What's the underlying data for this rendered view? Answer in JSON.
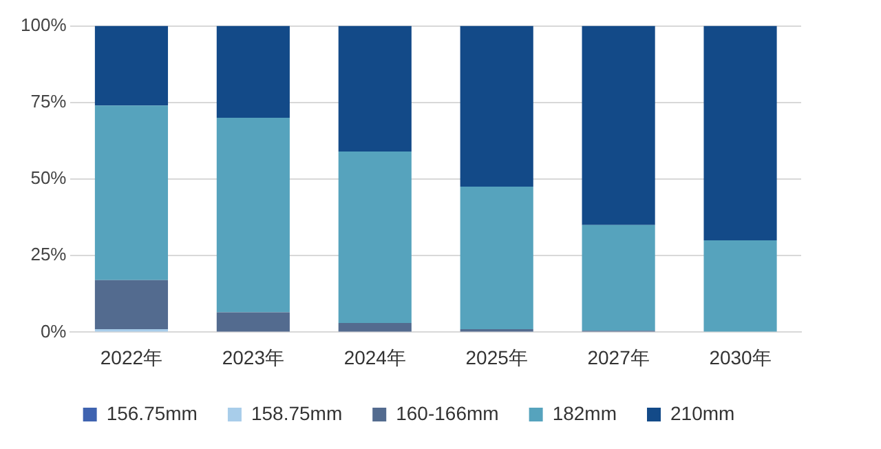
{
  "chart_data": {
    "type": "bar",
    "stacked": true,
    "categories": [
      "2022年",
      "2023年",
      "2024年",
      "2025年",
      "2027年",
      "2030年"
    ],
    "series": [
      {
        "name": "156.75mm",
        "color": "#3f63b0",
        "values": [
          0,
          0,
          0,
          0,
          0,
          0
        ]
      },
      {
        "name": "158.75mm",
        "color": "#a8cdea",
        "values": [
          1,
          0,
          0,
          0,
          0,
          0
        ]
      },
      {
        "name": "160-166mm",
        "color": "#536b8f",
        "values": [
          16,
          6.5,
          3,
          1,
          0.5,
          0
        ]
      },
      {
        "name": "182mm",
        "color": "#56a3bd",
        "values": [
          57,
          63.5,
          56,
          46.5,
          34.5,
          30
        ]
      },
      {
        "name": "210mm",
        "color": "#134a88",
        "values": [
          26,
          30,
          41,
          52.5,
          65,
          70
        ]
      }
    ],
    "ylim": [
      0,
      100
    ],
    "yticks": [
      {
        "value": 0,
        "label": "0%"
      },
      {
        "value": 25,
        "label": "25%"
      },
      {
        "value": 50,
        "label": "50%"
      },
      {
        "value": 75,
        "label": "75%"
      },
      {
        "value": 100,
        "label": "100%"
      }
    ],
    "grid": "y",
    "legend": "bottom"
  }
}
